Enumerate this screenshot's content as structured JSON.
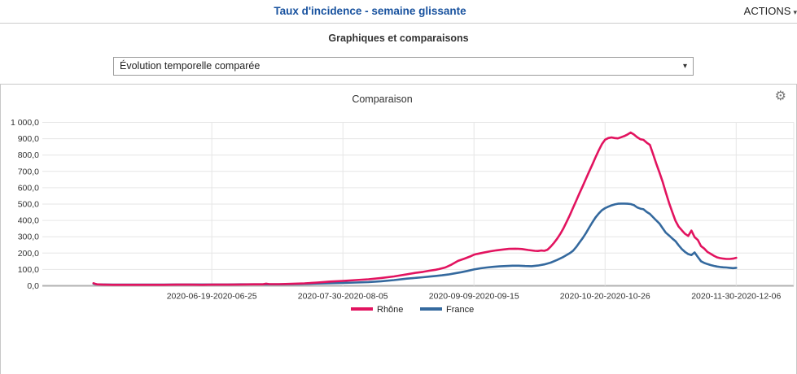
{
  "header": {
    "title": "Taux d'incidence - semaine glissante",
    "actions_label": "ACTIONS"
  },
  "icons": {
    "caret_down": "▾",
    "gear": "⚙"
  },
  "section": {
    "title": "Graphiques et comparaisons",
    "select_value": "Évolution temporelle comparée"
  },
  "chart_data": {
    "type": "line",
    "title": "Comparaison",
    "grid": true,
    "legend_position": "bottom",
    "x_axis": {
      "unit": "day",
      "start_date": "2020-05-16",
      "range_days": [
        -16,
        219
      ],
      "ticks": [
        {
          "day": 37,
          "label": "2020-06-19-2020-06-25"
        },
        {
          "day": 78,
          "label": "2020-07-30-2020-08-05"
        },
        {
          "day": 119,
          "label": "2020-09-09-2020-09-15"
        },
        {
          "day": 160,
          "label": "2020-10-20-2020-10-26"
        },
        {
          "day": 201,
          "label": "2020-11-30-2020-12-06"
        }
      ]
    },
    "y_axis": {
      "min": 0,
      "max": 1000,
      "step": 100,
      "tick_labels": [
        "0,0",
        "100,0",
        "200,0",
        "300,0",
        "400,0",
        "500,0",
        "600,0",
        "700,0",
        "800,0",
        "900,0",
        "1 000,0"
      ]
    },
    "series": [
      {
        "name": "France",
        "color": "#34699e",
        "points": [
          [
            0,
            13
          ],
          [
            1,
            9
          ],
          [
            3,
            8
          ],
          [
            6,
            7
          ],
          [
            10,
            7
          ],
          [
            14,
            7
          ],
          [
            18,
            7
          ],
          [
            22,
            7
          ],
          [
            26,
            8
          ],
          [
            30,
            8
          ],
          [
            34,
            8
          ],
          [
            38,
            8
          ],
          [
            42,
            8
          ],
          [
            46,
            9
          ],
          [
            50,
            9
          ],
          [
            54,
            9
          ],
          [
            58,
            9
          ],
          [
            62,
            10
          ],
          [
            66,
            12
          ],
          [
            70,
            14
          ],
          [
            74,
            16
          ],
          [
            78,
            18
          ],
          [
            82,
            20
          ],
          [
            86,
            23
          ],
          [
            90,
            28
          ],
          [
            94,
            35
          ],
          [
            98,
            44
          ],
          [
            101,
            49
          ],
          [
            103,
            52
          ],
          [
            105,
            56
          ],
          [
            107,
            60
          ],
          [
            109,
            64
          ],
          [
            111,
            69
          ],
          [
            113,
            76
          ],
          [
            115,
            83
          ],
          [
            117,
            91
          ],
          [
            119,
            100
          ],
          [
            121,
            107
          ],
          [
            123,
            112
          ],
          [
            125,
            116
          ],
          [
            127,
            119
          ],
          [
            129,
            121
          ],
          [
            131,
            123
          ],
          [
            133,
            123
          ],
          [
            135,
            121
          ],
          [
            137,
            120
          ],
          [
            139,
            124
          ],
          [
            141,
            131
          ],
          [
            143,
            142
          ],
          [
            145,
            158
          ],
          [
            147,
            177
          ],
          [
            149,
            200
          ],
          [
            150,
            215
          ],
          [
            151,
            238
          ],
          [
            152,
            265
          ],
          [
            153,
            292
          ],
          [
            154,
            322
          ],
          [
            155,
            355
          ],
          [
            156,
            388
          ],
          [
            157,
            418
          ],
          [
            158,
            442
          ],
          [
            159,
            462
          ],
          [
            160,
            475
          ],
          [
            161,
            484
          ],
          [
            162,
            492
          ],
          [
            163,
            498
          ],
          [
            164,
            502
          ],
          [
            165,
            503
          ],
          [
            166,
            503
          ],
          [
            167,
            502
          ],
          [
            168,
            500
          ],
          [
            169,
            494
          ],
          [
            170,
            480
          ],
          [
            171,
            472
          ],
          [
            172,
            468
          ],
          [
            173,
            452
          ],
          [
            174,
            440
          ],
          [
            175,
            420
          ],
          [
            176,
            400
          ],
          [
            177,
            381
          ],
          [
            178,
            352
          ],
          [
            179,
            325
          ],
          [
            180,
            308
          ],
          [
            181,
            290
          ],
          [
            182,
            273
          ],
          [
            183,
            248
          ],
          [
            184,
            225
          ],
          [
            185,
            207
          ],
          [
            186,
            194
          ],
          [
            187,
            188
          ],
          [
            188,
            204
          ],
          [
            189,
            176
          ],
          [
            190,
            150
          ],
          [
            191,
            140
          ],
          [
            192,
            133
          ],
          [
            193,
            127
          ],
          [
            194,
            122
          ],
          [
            195,
            118
          ],
          [
            196,
            115
          ],
          [
            197,
            113
          ],
          [
            198,
            112
          ],
          [
            199,
            110
          ],
          [
            200,
            108
          ],
          [
            201,
            110
          ]
        ]
      },
      {
        "name": "Rhône",
        "color": "#e2135f",
        "points": [
          [
            0,
            16
          ],
          [
            1,
            9
          ],
          [
            3,
            7
          ],
          [
            6,
            6
          ],
          [
            10,
            6
          ],
          [
            14,
            6
          ],
          [
            18,
            6
          ],
          [
            22,
            6
          ],
          [
            26,
            7
          ],
          [
            30,
            7
          ],
          [
            34,
            6
          ],
          [
            38,
            7
          ],
          [
            42,
            7
          ],
          [
            46,
            8
          ],
          [
            50,
            9
          ],
          [
            53,
            9
          ],
          [
            54,
            13
          ],
          [
            55,
            10
          ],
          [
            58,
            10
          ],
          [
            62,
            12
          ],
          [
            66,
            15
          ],
          [
            70,
            20
          ],
          [
            74,
            26
          ],
          [
            78,
            30
          ],
          [
            82,
            35
          ],
          [
            86,
            40
          ],
          [
            90,
            48
          ],
          [
            94,
            57
          ],
          [
            98,
            70
          ],
          [
            101,
            80
          ],
          [
            103,
            85
          ],
          [
            105,
            92
          ],
          [
            107,
            98
          ],
          [
            108,
            102
          ],
          [
            110,
            112
          ],
          [
            112,
            130
          ],
          [
            114,
            152
          ],
          [
            116,
            166
          ],
          [
            118,
            181
          ],
          [
            119,
            190
          ],
          [
            120,
            195
          ],
          [
            122,
            203
          ],
          [
            124,
            211
          ],
          [
            126,
            217
          ],
          [
            128,
            222
          ],
          [
            130,
            226
          ],
          [
            132,
            227
          ],
          [
            134,
            225
          ],
          [
            136,
            219
          ],
          [
            138,
            214
          ],
          [
            139,
            213
          ],
          [
            140,
            216
          ],
          [
            141,
            214
          ],
          [
            142,
            221
          ],
          [
            143,
            240
          ],
          [
            144,
            262
          ],
          [
            145,
            288
          ],
          [
            146,
            318
          ],
          [
            147,
            352
          ],
          [
            148,
            392
          ],
          [
            149,
            434
          ],
          [
            150,
            478
          ],
          [
            151,
            522
          ],
          [
            152,
            566
          ],
          [
            153,
            610
          ],
          [
            154,
            654
          ],
          [
            155,
            698
          ],
          [
            156,
            742
          ],
          [
            157,
            786
          ],
          [
            158,
            828
          ],
          [
            159,
            866
          ],
          [
            160,
            894
          ],
          [
            161,
            904
          ],
          [
            162,
            908
          ],
          [
            163,
            904
          ],
          [
            164,
            902
          ],
          [
            165,
            909
          ],
          [
            166,
            916
          ],
          [
            167,
            926
          ],
          [
            168,
            938
          ],
          [
            169,
            926
          ],
          [
            170,
            910
          ],
          [
            171,
            897
          ],
          [
            172,
            893
          ],
          [
            173,
            876
          ],
          [
            174,
            862
          ],
          [
            175,
            806
          ],
          [
            176,
            748
          ],
          [
            177,
            694
          ],
          [
            178,
            636
          ],
          [
            179,
            570
          ],
          [
            180,
            508
          ],
          [
            181,
            452
          ],
          [
            182,
            398
          ],
          [
            183,
            362
          ],
          [
            184,
            340
          ],
          [
            185,
            318
          ],
          [
            186,
            305
          ],
          [
            187,
            338
          ],
          [
            188,
            298
          ],
          [
            189,
            280
          ],
          [
            190,
            243
          ],
          [
            191,
            228
          ],
          [
            192,
            207
          ],
          [
            193,
            196
          ],
          [
            194,
            184
          ],
          [
            195,
            174
          ],
          [
            196,
            169
          ],
          [
            197,
            166
          ],
          [
            198,
            164
          ],
          [
            199,
            164
          ],
          [
            200,
            166
          ],
          [
            201,
            171
          ]
        ]
      }
    ]
  }
}
